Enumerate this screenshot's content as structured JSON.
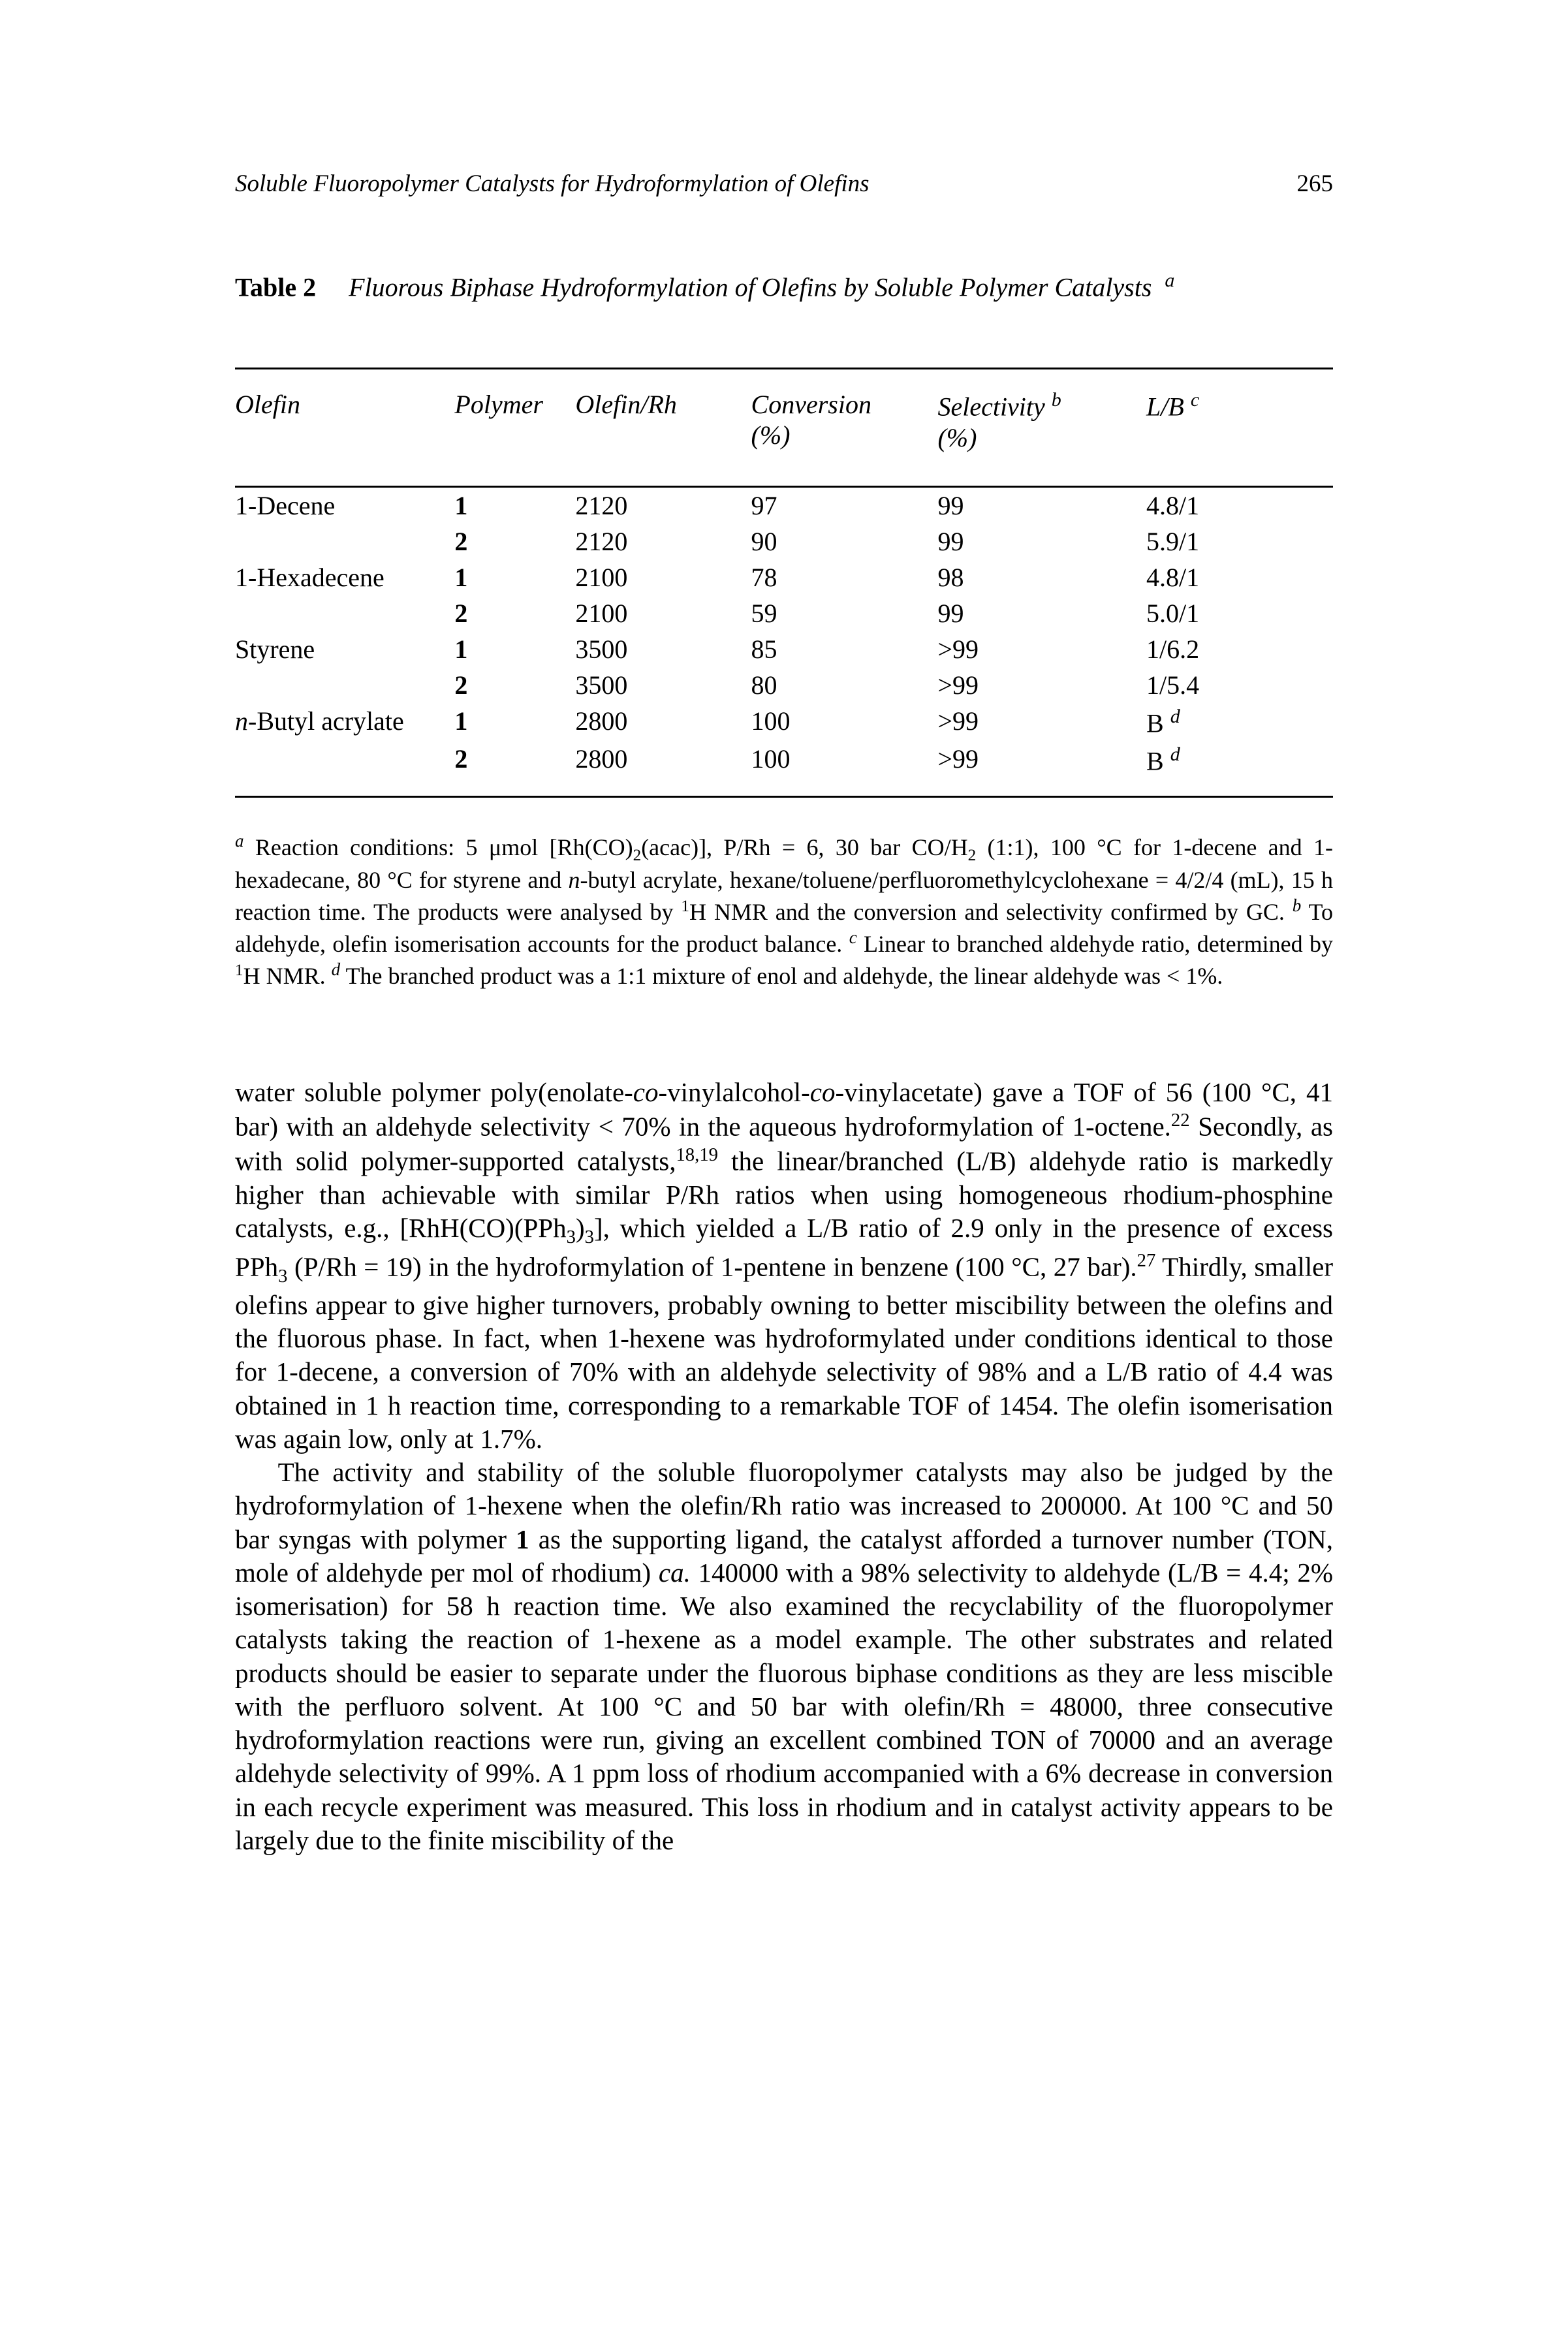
{
  "header": {
    "running_title": "Soluble Fluoropolymer Catalysts for Hydroformylation of Olefins",
    "page_number": "265"
  },
  "table": {
    "label": "Table 2",
    "caption_pre": "Fluorous Biphase Hydroformylation of Olefins by Soluble Polymer Catalysts",
    "caption_sup": "a",
    "headers": {
      "olefin": "Olefin",
      "polymer": "Polymer",
      "olefin_rh": "Olefin/Rh",
      "conversion": "Conversion",
      "conversion_unit": "(%)",
      "selectivity": "Selectivity",
      "selectivity_sup": "b",
      "selectivity_unit": "(%)",
      "lb": "L/B",
      "lb_sup": "c"
    },
    "rows": [
      {
        "olefin": "1-Decene",
        "polymer": "1",
        "ratio": "2120",
        "conv": "97",
        "sel": "99",
        "lb": "4.8/1",
        "lb_sup": ""
      },
      {
        "olefin": "",
        "polymer": "2",
        "ratio": "2120",
        "conv": "90",
        "sel": "99",
        "lb": "5.9/1",
        "lb_sup": ""
      },
      {
        "olefin": "1-Hexadecene",
        "polymer": "1",
        "ratio": "2100",
        "conv": "78",
        "sel": "98",
        "lb": "4.8/1",
        "lb_sup": ""
      },
      {
        "olefin": "",
        "polymer": "2",
        "ratio": "2100",
        "conv": "59",
        "sel": "99",
        "lb": "5.0/1",
        "lb_sup": ""
      },
      {
        "olefin": "Styrene",
        "polymer": "1",
        "ratio": "3500",
        "conv": "85",
        "sel": ">99",
        "lb": "1/6.2",
        "lb_sup": ""
      },
      {
        "olefin": "",
        "polymer": "2",
        "ratio": "3500",
        "conv": "80",
        "sel": ">99",
        "lb": "1/5.4",
        "lb_sup": ""
      },
      {
        "olefin_html": "nbutyl",
        "polymer": "1",
        "ratio": "2800",
        "conv": "100",
        "sel": ">99",
        "lb": "B",
        "lb_sup": "d"
      },
      {
        "olefin": "",
        "polymer": "2",
        "ratio": "2800",
        "conv": "100",
        "sel": ">99",
        "lb": "B",
        "lb_sup": "d"
      }
    ],
    "butyl_label_prefix": "n",
    "butyl_label_rest": "-Butyl acrylate"
  },
  "footnotes": {
    "a_lead": "a",
    "a_text_1": " Reaction conditions: 5 μmol [Rh(CO)",
    "a_text_sub1": "2",
    "a_text_2": "(acac)], P/Rh = 6, 30 bar CO/H",
    "a_text_sub2": "2",
    "a_text_3": " (1:1), 100 °C for 1-decene and 1-hexadecane, 80 °C for styrene and ",
    "a_text_n": "n",
    "a_text_4": "-butyl acrylate, hexane/toluene/perfluoromethylcyclohexane = 4/2/4 (mL), 15 h reaction time. The products were analysed by ",
    "a_text_sup1": "1",
    "a_text_5": "H NMR and the conversion and selectivity confirmed by GC. ",
    "b_lead": "b",
    "b_text": " To aldehyde, olefin isomerisation accounts for the product balance. ",
    "c_lead": "c",
    "c_text_1": " Linear to branched aldehyde ratio, determined by ",
    "c_text_sup1": "1",
    "c_text_2": "H NMR. ",
    "d_lead": "d",
    "d_text": " The branched product was a 1:1 mixture of enol and aldehyde, the linear aldehyde was < 1%."
  },
  "body": {
    "p1_a": "water soluble polymer poly(enolate-",
    "p1_co1": "co",
    "p1_b": "-vinylalcohol-",
    "p1_co2": "co",
    "p1_c": "-vinylacetate) gave a TOF of 56 (100 °C, 41 bar) with an aldehyde selectivity < 70% in the aqueous hydroformylation of 1-octene.",
    "p1_ref1": "22",
    "p1_d": " Secondly, as with solid polymer-supported catalysts,",
    "p1_ref2": "18,19",
    "p1_e": " the linear/branched (L/B) aldehyde ratio is markedly higher than achievable with similar P/Rh ratios when using homogeneous rhodium-phosphine catalysts, e.g., [RhH(CO)(PPh",
    "p1_sub1": "3",
    "p1_f": ")",
    "p1_sub2": "3",
    "p1_g": "], which yielded a L/B ratio of 2.9 only in the presence of excess PPh",
    "p1_sub3": "3",
    "p1_h": " (P/Rh = 19) in the hydroformylation of 1-pentene in benzene (100 °C, 27 bar).",
    "p1_ref3": "27",
    "p1_i": " Thirdly, smaller olefins appear to give higher turnovers, probably owning to better miscibility between the olefins and the fluorous phase. In fact, when 1-hexene was hydroformylated under conditions identical to those for 1-decene, a conversion of 70% with an aldehyde selectivity of 98% and a L/B ratio of 4.4 was obtained in 1 h reaction time, corresponding to a remarkable TOF of 1454. The olefin isomerisation was again low, only at 1.7%.",
    "p2_a": "The activity and stability of the soluble fluoropolymer catalysts may also be judged by the hydroformylation of 1-hexene when the olefin/Rh ratio was increased to 200000. At 100 °C and 50 bar syngas with polymer ",
    "p2_bold1": "1",
    "p2_b": " as the supporting ligand, the catalyst afforded a turnover number (TON, mole of aldehyde per mol of rhodium) ",
    "p2_ca": "ca.",
    "p2_c": " 140000 with a 98% selectivity to aldehyde (L/B = 4.4; 2% isomerisation) for 58 h reaction time. We also examined the recyclability of the fluoropolymer catalysts taking the reaction of 1-hexene as a model example. The other substrates and related products should be easier to separate under the fluorous biphase conditions as they are less miscible with the perfluoro solvent. At 100 °C and 50 bar with olefin/Rh = 48000, three consecutive hydroformylation reactions were run, giving an excellent combined TON of 70000 and an average aldehyde selectivity of 99%. A 1 ppm loss of rhodium accompanied with a 6% decrease in conversion in each recycle experiment was measured. This loss in rhodium and in catalyst activity appears to be largely due to the finite miscibility of the"
  },
  "colors": {
    "text": "#000000",
    "background": "#ffffff",
    "rule": "#000000"
  }
}
